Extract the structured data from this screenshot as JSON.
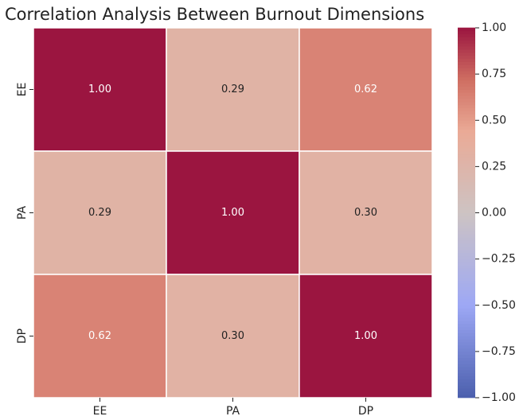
{
  "chart_data": {
    "type": "heatmap",
    "title": "Correlation Analysis Between Burnout Dimensions",
    "x": [
      "EE",
      "PA",
      "DP"
    ],
    "y": [
      "EE",
      "PA",
      "DP"
    ],
    "z": [
      [
        1.0,
        0.29,
        0.62
      ],
      [
        0.29,
        1.0,
        0.3
      ],
      [
        0.62,
        0.3,
        1.0
      ]
    ],
    "value_labels": [
      [
        "1.00",
        "0.29",
        "0.62"
      ],
      [
        "0.29",
        "1.00",
        "0.30"
      ],
      [
        "0.62",
        "0.30",
        "1.00"
      ]
    ],
    "colormap": "coolwarm",
    "clim": [
      -1,
      1
    ],
    "cticks": [
      {
        "value": -1,
        "label": "−1.00"
      },
      {
        "value": -0.75,
        "label": "−0.75"
      },
      {
        "value": -0.5,
        "label": "−0.50"
      },
      {
        "value": -0.25,
        "label": "−0.25"
      },
      {
        "value": 0,
        "label": "0.00"
      },
      {
        "value": 0.25,
        "label": "0.25"
      },
      {
        "value": 0.5,
        "label": "0.50"
      },
      {
        "value": 0.75,
        "label": "0.75"
      },
      {
        "value": 1,
        "label": "1.00"
      }
    ]
  }
}
